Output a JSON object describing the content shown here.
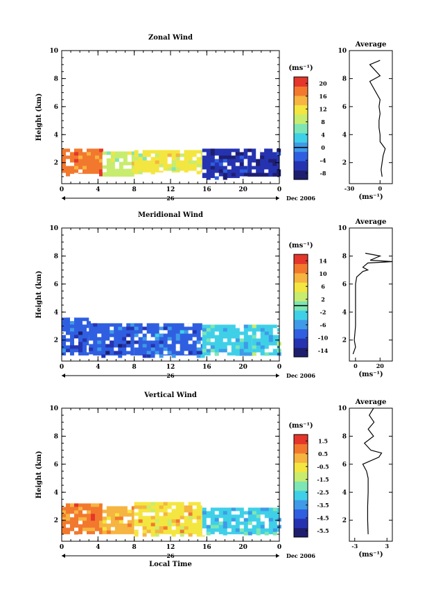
{
  "chart_data": [
    {
      "type": "heatmap",
      "title": "Zonal Wind",
      "ylabel": "Height (km)",
      "xlabel": "",
      "x_ticks": [
        "0",
        "4",
        "8",
        "12",
        "16",
        "20",
        "0"
      ],
      "xlim": [
        0,
        24
      ],
      "y_ticks": [
        "2",
        "4",
        "6",
        "8",
        "10"
      ],
      "ylim": [
        0.5,
        10
      ],
      "date_day": "26",
      "date_label": "Dec 2006",
      "colorbar": {
        "unit": "(ms⁻¹)",
        "ticks": [
          "20",
          "16",
          "12",
          "8",
          "4",
          "0",
          "-4",
          "-8"
        ],
        "range": [
          -10,
          22
        ],
        "contour_at": 0
      },
      "regions": [
        {
          "x0": 0,
          "x1": 4.5,
          "y0": 1.2,
          "y1": 3.0,
          "value": 18
        },
        {
          "x0": 4.5,
          "x1": 8,
          "y0": 1.0,
          "y1": 2.8,
          "value": 10
        },
        {
          "x0": 8,
          "x1": 15.5,
          "y0": 1.3,
          "y1": 2.9,
          "value": 11
        },
        {
          "x0": 15.5,
          "x1": 20.5,
          "y0": 0.9,
          "y1": 3.0,
          "value": -6
        },
        {
          "x0": 20.5,
          "x1": 24,
          "y0": 1.0,
          "y1": 3.0,
          "value": -7
        }
      ],
      "profile": {
        "title": "Average",
        "xlabel": "(ms⁻¹)",
        "x_ticks": [
          "-30",
          "0"
        ],
        "xlim": [
          -30,
          12
        ],
        "points": [
          [
            2,
            1.0
          ],
          [
            1,
            1.5
          ],
          [
            2,
            2.0
          ],
          [
            3,
            2.5
          ],
          [
            5,
            3.0
          ],
          [
            0,
            3.5
          ],
          [
            0,
            4.0
          ],
          [
            -1,
            4.5
          ],
          [
            -1,
            5.0
          ],
          [
            0,
            5.5
          ],
          [
            -1,
            6.0
          ],
          [
            0,
            6.5
          ],
          [
            -10,
            7.8
          ],
          [
            0,
            8.2
          ],
          [
            -10,
            9.0
          ],
          [
            0,
            9.3
          ]
        ]
      }
    },
    {
      "type": "heatmap",
      "title": "Meridional Wind",
      "ylabel": "Height (km)",
      "xlabel": "",
      "x_ticks": [
        "0",
        "4",
        "8",
        "12",
        "16",
        "20",
        "0"
      ],
      "xlim": [
        0,
        24
      ],
      "y_ticks": [
        "2",
        "4",
        "6",
        "8",
        "10"
      ],
      "ylim": [
        0.5,
        10
      ],
      "date_day": "26",
      "date_label": "Dec 2006",
      "colorbar": {
        "unit": "(ms⁻¹)",
        "ticks": [
          "14",
          "10",
          "6",
          "2",
          "-2",
          "-6",
          "-10",
          "-14"
        ],
        "range": [
          -16,
          16
        ],
        "contour_at": 0
      },
      "regions": [
        {
          "x0": 0,
          "x1": 3,
          "y0": 0.9,
          "y1": 3.6,
          "value": -10
        },
        {
          "x0": 3,
          "x1": 8,
          "y0": 0.9,
          "y1": 3.2,
          "value": -10
        },
        {
          "x0": 8,
          "x1": 15.5,
          "y0": 0.9,
          "y1": 3.2,
          "value": -8
        },
        {
          "x0": 15.5,
          "x1": 21,
          "y0": 0.9,
          "y1": 3.1,
          "value": -3
        },
        {
          "x0": 21,
          "x1": 24,
          "y0": 0.9,
          "y1": 3.1,
          "value": -2
        }
      ],
      "profile": {
        "title": "Average",
        "xlabel": "(ms⁻¹)",
        "x_ticks": [
          "0",
          "20"
        ],
        "xlim": [
          -5,
          30
        ],
        "points": [
          [
            -2,
            1.0
          ],
          [
            0,
            1.5
          ],
          [
            -1,
            2.0
          ],
          [
            0,
            3.0
          ],
          [
            0,
            4.0
          ],
          [
            0,
            5.0
          ],
          [
            0,
            6.0
          ],
          [
            1,
            6.5
          ],
          [
            6,
            6.9
          ],
          [
            10,
            7.0
          ],
          [
            6,
            7.2
          ],
          [
            10,
            7.5
          ],
          [
            30,
            7.6
          ],
          [
            12,
            7.7
          ],
          [
            20,
            8.0
          ],
          [
            8,
            8.2
          ]
        ]
      }
    },
    {
      "type": "heatmap",
      "title": "Vertical Wind",
      "ylabel": "Height (km)",
      "xlabel": "Local Time",
      "x_ticks": [
        "0",
        "4",
        "8",
        "12",
        "16",
        "20",
        "0"
      ],
      "xlim": [
        0,
        24
      ],
      "y_ticks": [
        "2",
        "4",
        "6",
        "8",
        "10"
      ],
      "ylim": [
        0.5,
        10
      ],
      "date_day": "26",
      "date_label": "Dec 2006",
      "colorbar": {
        "unit": "(ms⁻¹)",
        "ticks": [
          "1.5",
          "0.5",
          "-0.5",
          "-1.5",
          "-2.5",
          "-3.5",
          "-4.5",
          "-5.5"
        ],
        "range": [
          -6,
          2
        ]
      },
      "regions": [
        {
          "x0": 0,
          "x1": 4.5,
          "y0": 1.0,
          "y1": 3.2,
          "value": 0.6
        },
        {
          "x0": 4.5,
          "x1": 8,
          "y0": 1.0,
          "y1": 3.0,
          "value": 0.2
        },
        {
          "x0": 8,
          "x1": 15.5,
          "y0": 1.0,
          "y1": 3.3,
          "value": -0.2
        },
        {
          "x0": 15.5,
          "x1": 24,
          "y0": 1.0,
          "y1": 2.9,
          "value": -2.8
        }
      ],
      "profile": {
        "title": "Average",
        "xlabel": "(ms⁻¹)",
        "x_ticks": [
          "-3",
          "3"
        ],
        "xlim": [
          -4,
          4
        ],
        "points": [
          [
            -0.5,
            1.0
          ],
          [
            -0.6,
            2.0
          ],
          [
            -0.6,
            3.0
          ],
          [
            -0.5,
            4.0
          ],
          [
            -0.5,
            5.0
          ],
          [
            -0.8,
            5.5
          ],
          [
            -1.5,
            6.0
          ],
          [
            1.5,
            6.5
          ],
          [
            2.0,
            6.8
          ],
          [
            0,
            7.0
          ],
          [
            -1.2,
            7.5
          ],
          [
            0.5,
            8.0
          ],
          [
            -0.5,
            8.5
          ],
          [
            0.6,
            9.0
          ],
          [
            -0.3,
            9.5
          ],
          [
            0.5,
            10.0
          ]
        ]
      }
    }
  ]
}
